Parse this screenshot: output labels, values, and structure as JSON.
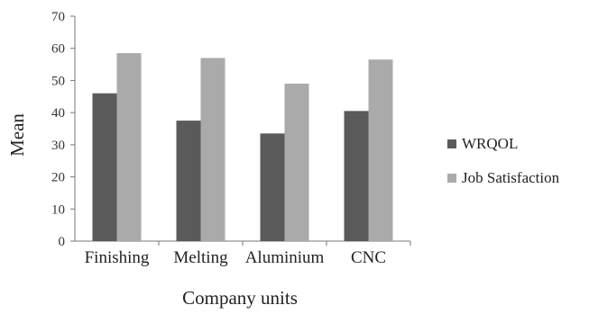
{
  "chart_data": {
    "type": "bar",
    "title": "",
    "xlabel": "Company units",
    "ylabel": "Mean",
    "ylim": [
      0,
      70
    ],
    "yticks": [
      0,
      10,
      20,
      30,
      40,
      50,
      60,
      70
    ],
    "grid": false,
    "legend_position": "right",
    "categories": [
      "Finishing",
      "Melting",
      "Aluminium",
      "CNC"
    ],
    "series": [
      {
        "name": "WRQOL",
        "color": "#5a5a5a",
        "values": [
          46,
          37.5,
          33.5,
          40.5
        ]
      },
      {
        "name": "Job Satisfaction",
        "color": "#aaaaaa",
        "values": [
          58.5,
          57,
          49,
          56.5
        ]
      }
    ]
  }
}
